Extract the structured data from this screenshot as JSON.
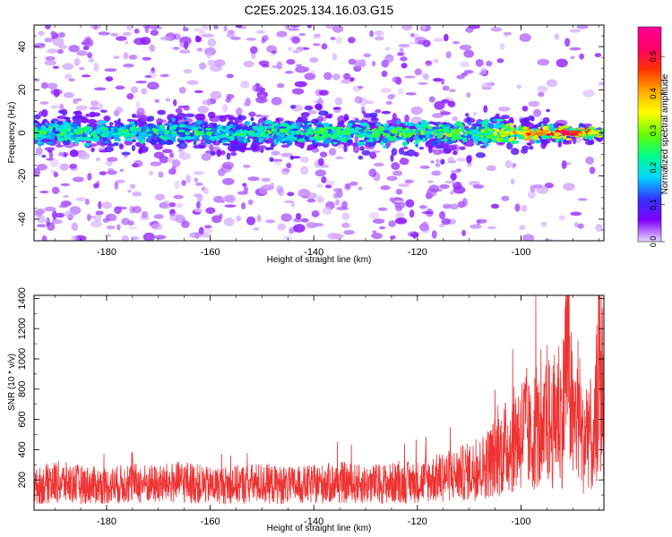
{
  "title": "C2E5.2025.134.16.03.G15",
  "colorbar": {
    "label": "Normalized spectral amplitude",
    "ticks": [
      "0.0",
      "0.1",
      "0.2",
      "0.3",
      "0.4",
      "0.5"
    ],
    "range": [
      0,
      0.58
    ],
    "colors": [
      "#e8d8ff",
      "#7f00ff",
      "#3333ff",
      "#00d8ff",
      "#00ff88",
      "#66ff00",
      "#ffff00",
      "#ffaa00",
      "#ff3300",
      "#ff0066",
      "#ff0099"
    ]
  },
  "chart_data": [
    {
      "type": "heatmap",
      "xlabel": "Height of straight line (km)",
      "ylabel": "Frequency (Hz)",
      "xlim": [
        -194,
        -84
      ],
      "ylim": [
        -50,
        50
      ],
      "xticks": [
        -180,
        -160,
        -140,
        -120,
        -100
      ],
      "yticks": [
        40,
        20,
        0,
        -20,
        -40
      ],
      "band_center_hz": 0,
      "band_halfwidth_hz": [
        8,
        3
      ],
      "peak_amplitude_by_height": {
        "x": [
          -194,
          -160,
          -130,
          -110,
          -105,
          -100,
          -95,
          -92,
          -88,
          -85
        ],
        "values": [
          0.22,
          0.2,
          0.24,
          0.25,
          0.3,
          0.45,
          0.48,
          0.55,
          0.45,
          0.4
        ]
      }
    },
    {
      "type": "line",
      "xlabel": "Height of straight line (km)",
      "ylabel": "SNR (10 * v/v)",
      "xlim": [
        -194,
        -84
      ],
      "ylim": [
        0,
        1420
      ],
      "xticks": [
        -180,
        -160,
        -140,
        -120,
        -100
      ],
      "yticks": [
        200,
        400,
        600,
        800,
        1000,
        1200,
        1400
      ],
      "series": [
        {
          "color": "#ee3333",
          "x": [
            -194,
            -190,
            -185,
            -180,
            -175,
            -170,
            -165,
            -160,
            -155,
            -150,
            -145,
            -140,
            -135,
            -130,
            -125,
            -120,
            -115,
            -112,
            -110,
            -108,
            -106,
            -104,
            -102,
            -100,
            -99,
            -98,
            -97,
            -96,
            -95,
            -94,
            -93,
            -92,
            -91,
            -90,
            -89,
            -88,
            -87,
            -86,
            -85,
            -84
          ],
          "values": [
            180,
            220,
            200,
            190,
            210,
            200,
            220,
            190,
            200,
            210,
            190,
            200,
            215,
            200,
            210,
            220,
            260,
            280,
            300,
            320,
            380,
            450,
            520,
            600,
            650,
            500,
            700,
            450,
            750,
            600,
            820,
            700,
            1420,
            600,
            800,
            500,
            700,
            400,
            1100,
            900
          ]
        }
      ]
    }
  ]
}
